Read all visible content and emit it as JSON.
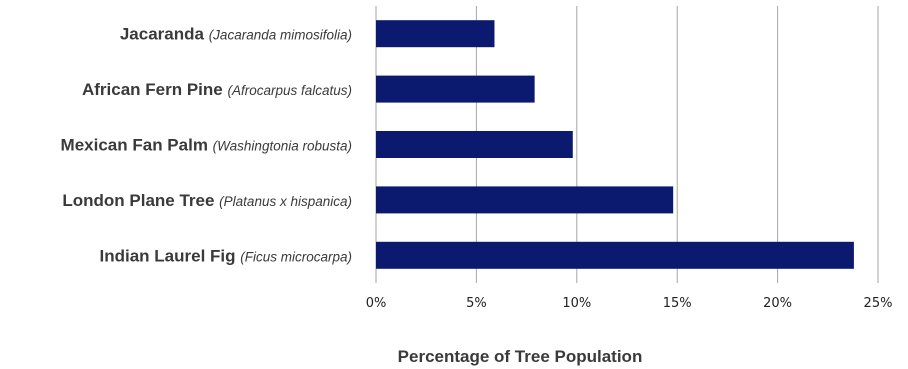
{
  "chart_data": {
    "type": "bar",
    "orientation": "horizontal",
    "categories": [
      {
        "common": "Jacaranda",
        "scientific": "(Jacaranda mimosifolia)"
      },
      {
        "common": "African Fern Pine",
        "scientific": "(Afrocarpus falcatus)"
      },
      {
        "common": "Mexican Fan Palm",
        "scientific": "(Washingtonia robusta)"
      },
      {
        "common": "London Plane Tree",
        "scientific": "(Platanus x hispanica)"
      },
      {
        "common": "Indian Laurel Fig",
        "scientific": "(Ficus microcarpa)"
      }
    ],
    "values": [
      5.9,
      7.9,
      9.8,
      14.8,
      23.8
    ],
    "xlim": [
      0,
      25
    ],
    "xticks": [
      "0%",
      "5%",
      "10%",
      "15%",
      "20%",
      "25%"
    ],
    "xlabel": "Percentage of Tree Population",
    "ylabel": "",
    "title": "",
    "grid": "vertical",
    "bar_color": "#0b1a6e",
    "grid_color": "#a6a6a6"
  }
}
